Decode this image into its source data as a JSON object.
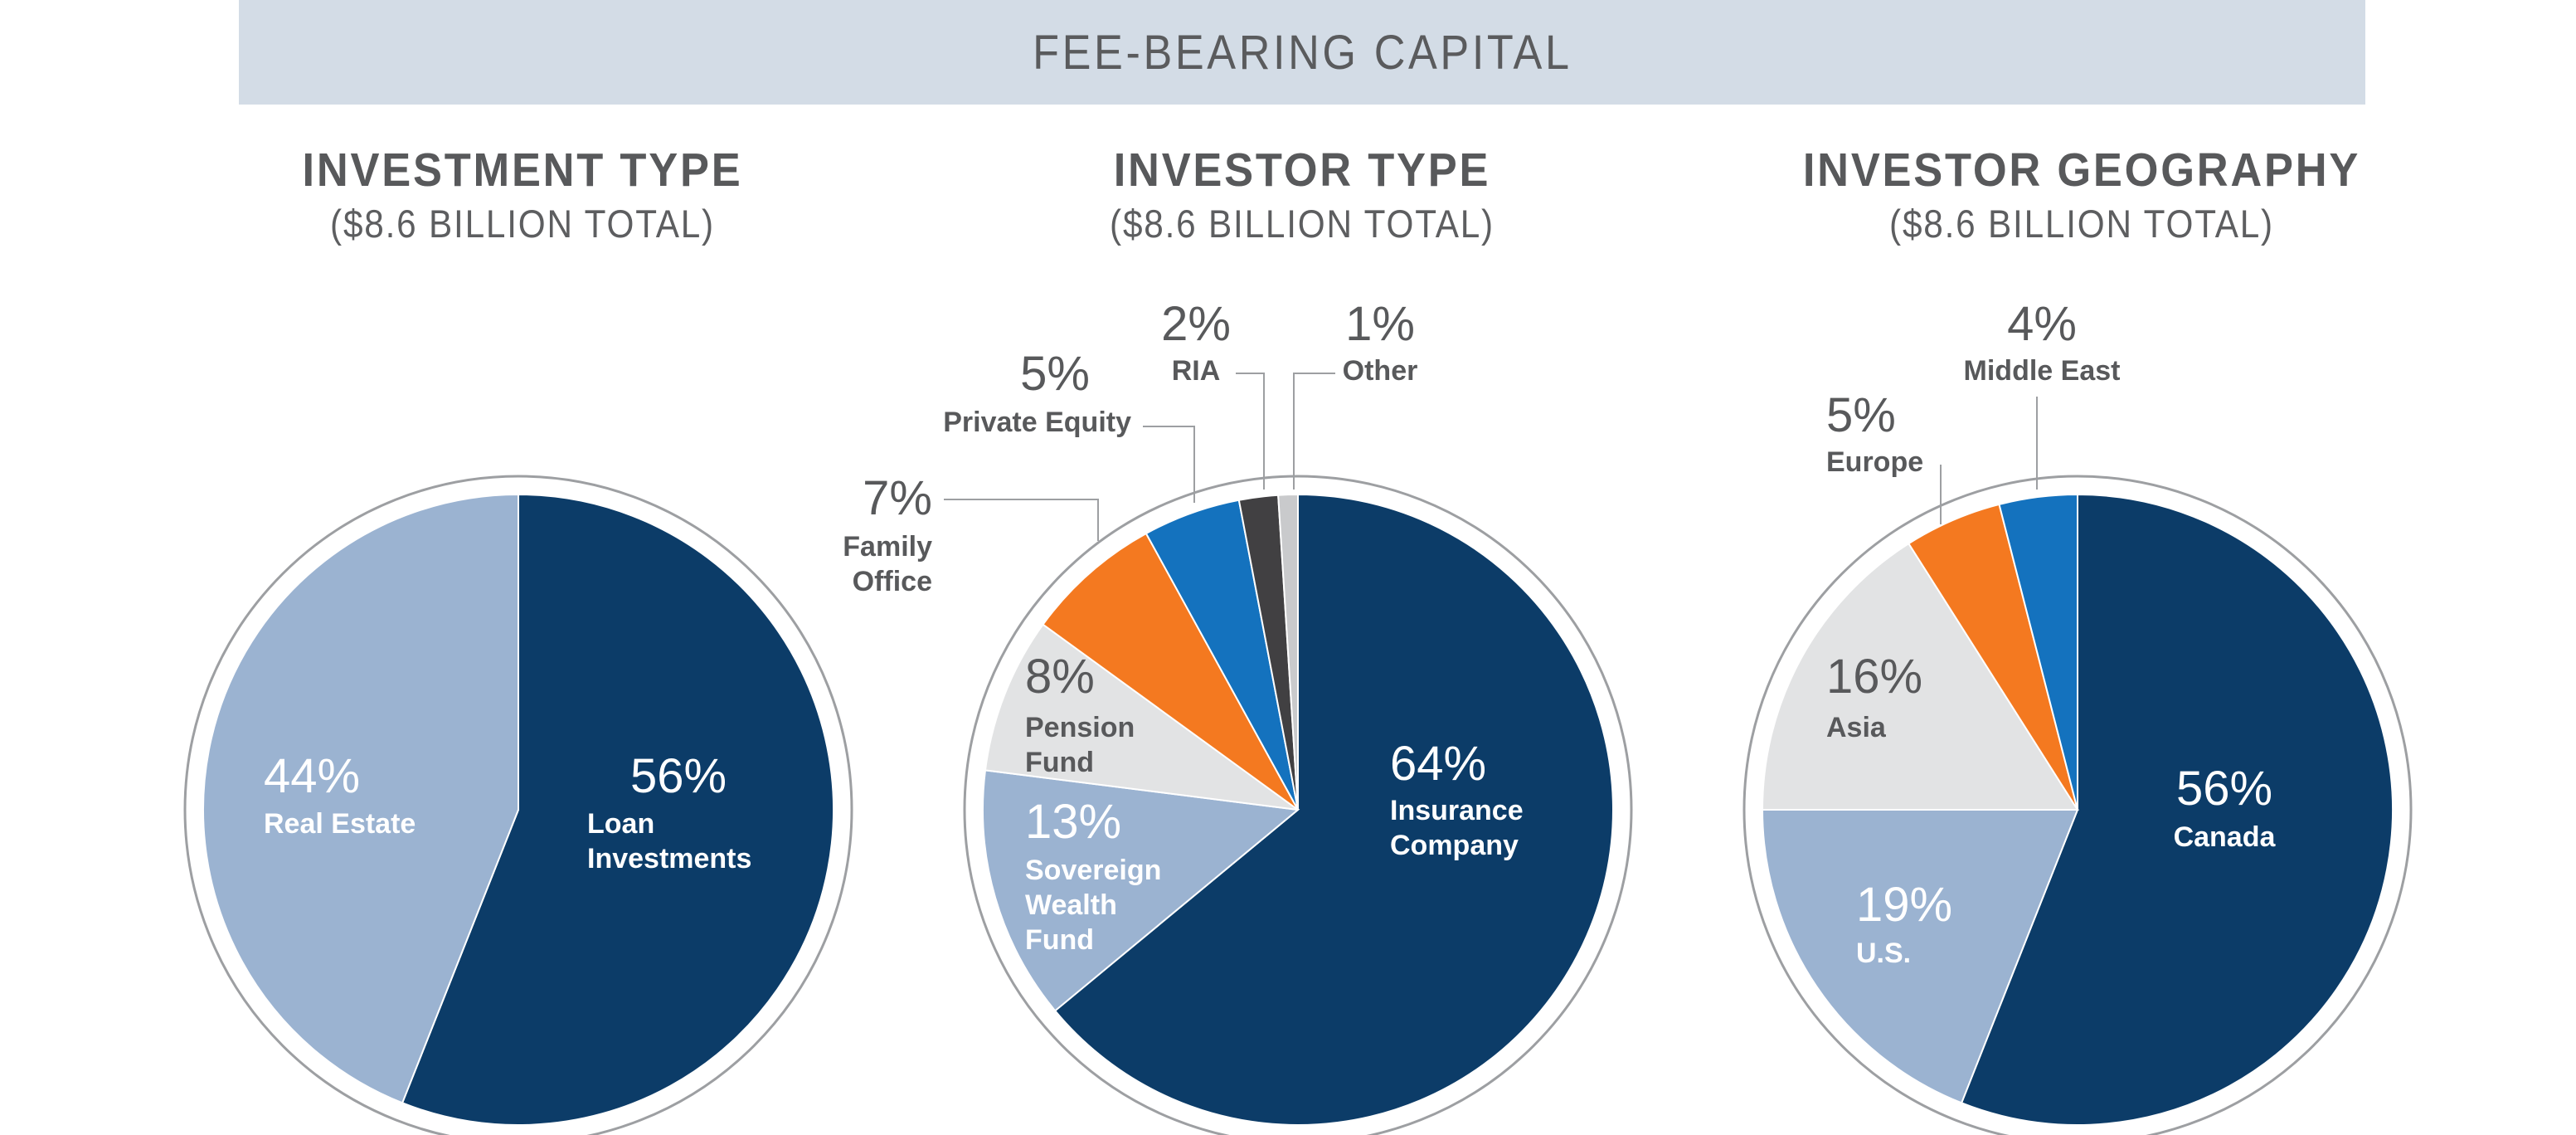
{
  "banner": {
    "title": "FEE-BEARING CAPITAL"
  },
  "colors": {
    "navy": "#0c3c68",
    "light_blue": "#9bb3d1",
    "light_gray": "#e2e3e4",
    "orange": "#f47920",
    "mid_blue": "#1472be",
    "dark_gray": "#414042",
    "silver": "#c9cacc",
    "text_gray": "#58595b"
  },
  "chart_data": [
    {
      "type": "pie",
      "title": "INVESTMENT TYPE",
      "subtitle": "($8.6 BILLION TOTAL)",
      "slices": [
        {
          "label": "Loan Investments",
          "pct_text": "56%",
          "value": 56,
          "color": "#0c3c68"
        },
        {
          "label": "Real Estate",
          "pct_text": "44%",
          "value": 44,
          "color": "#9bb3d1"
        }
      ]
    },
    {
      "type": "pie",
      "title": "INVESTOR TYPE",
      "subtitle": "($8.6 BILLION TOTAL)",
      "slices": [
        {
          "label": "Insurance Company",
          "pct_text": "64%",
          "value": 64,
          "color": "#0c3c68"
        },
        {
          "label": "Sovereign Wealth Fund",
          "pct_text": "13%",
          "value": 13,
          "color": "#9bb3d1"
        },
        {
          "label": "Pension Fund",
          "pct_text": "8%",
          "value": 8,
          "color": "#e2e3e4"
        },
        {
          "label": "Family Office",
          "pct_text": "7%",
          "value": 7,
          "color": "#f47920"
        },
        {
          "label": "Private Equity",
          "pct_text": "5%",
          "value": 5,
          "color": "#1472be"
        },
        {
          "label": "RIA",
          "pct_text": "2%",
          "value": 2,
          "color": "#414042"
        },
        {
          "label": "Other",
          "pct_text": "1%",
          "value": 1,
          "color": "#c9cacc"
        }
      ]
    },
    {
      "type": "pie",
      "title": "INVESTOR GEOGRAPHY",
      "subtitle": "($8.6 BILLION TOTAL)",
      "slices": [
        {
          "label": "Canada",
          "pct_text": "56%",
          "value": 56,
          "color": "#0c3c68"
        },
        {
          "label": "U.S.",
          "pct_text": "19%",
          "value": 19,
          "color": "#9bb3d1"
        },
        {
          "label": "Asia",
          "pct_text": "16%",
          "value": 16,
          "color": "#e2e3e4"
        },
        {
          "label": "Europe",
          "pct_text": "5%",
          "value": 5,
          "color": "#f47920"
        },
        {
          "label": "Middle East",
          "pct_text": "4%",
          "value": 4,
          "color": "#1472be"
        }
      ]
    }
  ]
}
